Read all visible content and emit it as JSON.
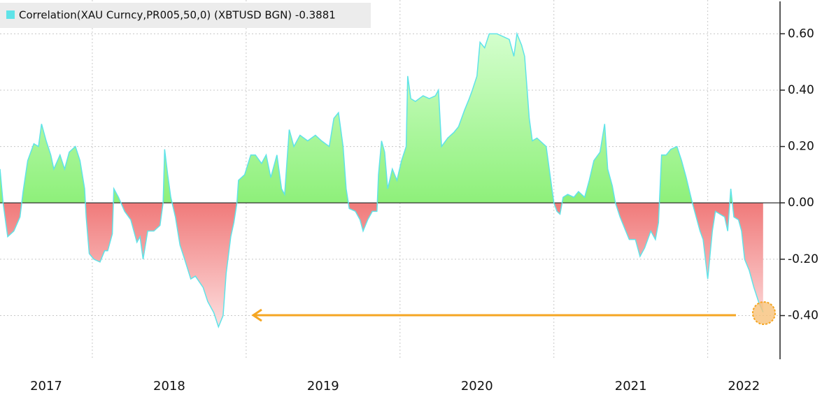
{
  "chart_data": {
    "type": "area",
    "series": [
      {
        "name": "Correlation(XAU Curncy,PR005,50,0) (XBTUSD BGN) -0.3881",
        "color": "#5fe3e8",
        "fill_positive": "#8ef07a",
        "fill_negative": "#f07a7a",
        "x": [
          2017.4,
          2017.42,
          2017.45,
          2017.49,
          2017.53,
          2017.55,
          2017.58,
          2017.62,
          2017.65,
          2017.67,
          2017.7,
          2017.73,
          2017.75,
          2017.79,
          2017.82,
          2017.85,
          2017.89,
          2017.92,
          2017.95,
          2017.96,
          2017.98,
          2018.01,
          2018.05,
          2018.08,
          2018.1,
          2018.13,
          2018.14,
          2018.17,
          2018.21,
          2018.25,
          2018.29,
          2018.31,
          2018.33,
          2018.36,
          2018.4,
          2018.44,
          2018.46,
          2018.47,
          2018.49,
          2018.51,
          2018.54,
          2018.57,
          2018.6,
          2018.64,
          2018.67,
          2018.72,
          2018.75,
          2018.79,
          2018.82,
          2018.85,
          2018.87,
          2018.9,
          2018.92,
          2018.94,
          2018.95,
          2018.99,
          2019.03,
          2019.06,
          2019.1,
          2019.13,
          2019.16,
          2019.2,
          2019.23,
          2019.25,
          2019.28,
          2019.31,
          2019.35,
          2019.4,
          2019.45,
          2019.49,
          2019.54,
          2019.57,
          2019.6,
          2019.63,
          2019.65,
          2019.67,
          2019.71,
          2019.74,
          2019.76,
          2019.79,
          2019.82,
          2019.85,
          2019.86,
          2019.88,
          2019.9,
          2019.92,
          2019.95,
          2019.98,
          2020.01,
          2020.04,
          2020.05,
          2020.07,
          2020.1,
          2020.15,
          2020.19,
          2020.23,
          2020.25,
          2020.27,
          2020.31,
          2020.35,
          2020.38,
          2020.42,
          2020.45,
          2020.47,
          2020.5,
          2020.52,
          2020.55,
          2020.58,
          2020.63,
          2020.67,
          2020.71,
          2020.74,
          2020.76,
          2020.79,
          2020.81,
          2020.84,
          2020.86,
          2020.89,
          2020.93,
          2020.95,
          2020.98,
          2021.0,
          2021.02,
          2021.04,
          2021.06,
          2021.09,
          2021.13,
          2021.16,
          2021.2,
          2021.23,
          2021.26,
          2021.3,
          2021.33,
          2021.35,
          2021.38,
          2021.4,
          2021.43,
          2021.46,
          2021.49,
          2021.53,
          2021.56,
          2021.59,
          2021.63,
          2021.66,
          2021.68,
          2021.7,
          2021.73,
          2021.76,
          2021.8,
          2021.83,
          2021.86,
          2021.9,
          2021.93,
          2021.95,
          2021.97,
          2022.0,
          2022.03,
          2022.05,
          2022.08,
          2022.11,
          2022.13,
          2022.15,
          2022.17,
          2022.2,
          2022.22,
          2022.24,
          2022.27,
          2022.3,
          2022.33,
          2022.36
        ],
        "values": [
          0.12,
          0.0,
          -0.12,
          -0.1,
          -0.05,
          0.04,
          0.15,
          0.21,
          0.2,
          0.28,
          0.22,
          0.17,
          0.12,
          0.17,
          0.12,
          0.18,
          0.2,
          0.15,
          0.05,
          -0.05,
          -0.18,
          -0.2,
          -0.21,
          -0.17,
          -0.17,
          -0.11,
          0.05,
          0.02,
          -0.03,
          -0.06,
          -0.14,
          -0.12,
          -0.2,
          -0.1,
          -0.1,
          -0.08,
          0.0,
          0.19,
          0.1,
          0.02,
          -0.05,
          -0.15,
          -0.2,
          -0.27,
          -0.26,
          -0.3,
          -0.35,
          -0.39,
          -0.44,
          -0.4,
          -0.25,
          -0.12,
          -0.07,
          0.0,
          0.08,
          0.1,
          0.17,
          0.17,
          0.14,
          0.17,
          0.09,
          0.17,
          0.05,
          0.03,
          0.26,
          0.2,
          0.24,
          0.22,
          0.24,
          0.22,
          0.2,
          0.3,
          0.32,
          0.2,
          0.05,
          -0.02,
          -0.03,
          -0.06,
          -0.1,
          -0.06,
          -0.03,
          -0.03,
          0.1,
          0.22,
          0.18,
          0.05,
          0.12,
          0.08,
          0.15,
          0.2,
          0.45,
          0.37,
          0.36,
          0.38,
          0.37,
          0.38,
          0.4,
          0.2,
          0.23,
          0.25,
          0.27,
          0.33,
          0.37,
          0.4,
          0.45,
          0.57,
          0.55,
          0.6,
          0.6,
          0.59,
          0.58,
          0.52,
          0.6,
          0.56,
          0.52,
          0.3,
          0.22,
          0.23,
          0.21,
          0.2,
          0.08,
          0.0,
          -0.03,
          -0.04,
          0.02,
          0.03,
          0.02,
          0.04,
          0.02,
          0.08,
          0.15,
          0.18,
          0.28,
          0.12,
          0.06,
          0.0,
          -0.05,
          -0.09,
          -0.13,
          -0.13,
          -0.19,
          -0.16,
          -0.1,
          -0.13,
          -0.07,
          0.17,
          0.17,
          0.19,
          0.2,
          0.15,
          0.09,
          0.0,
          -0.06,
          -0.1,
          -0.13,
          -0.27,
          -0.1,
          -0.03,
          -0.04,
          -0.05,
          -0.1,
          0.05,
          -0.05,
          -0.06,
          -0.1,
          -0.2,
          -0.24,
          -0.3,
          -0.35,
          -0.3881
        ]
      }
    ],
    "xlim": [
      2017.4,
      2022.47
    ],
    "xticks": [
      2017,
      2018,
      2019,
      2020,
      2021,
      2022
    ],
    "ylim": [
      -0.55,
      0.7
    ],
    "yticks": [
      {
        "value": -0.4,
        "label": "-0.40"
      },
      {
        "value": -0.2,
        "label": "-0.20"
      },
      {
        "value": 0,
        "label": "0.00"
      },
      {
        "value": 0.2,
        "label": "0.20"
      },
      {
        "value": 0.4,
        "label": "0.40"
      },
      {
        "value": 0.6,
        "label": "0.60"
      }
    ],
    "grid": true
  }
}
